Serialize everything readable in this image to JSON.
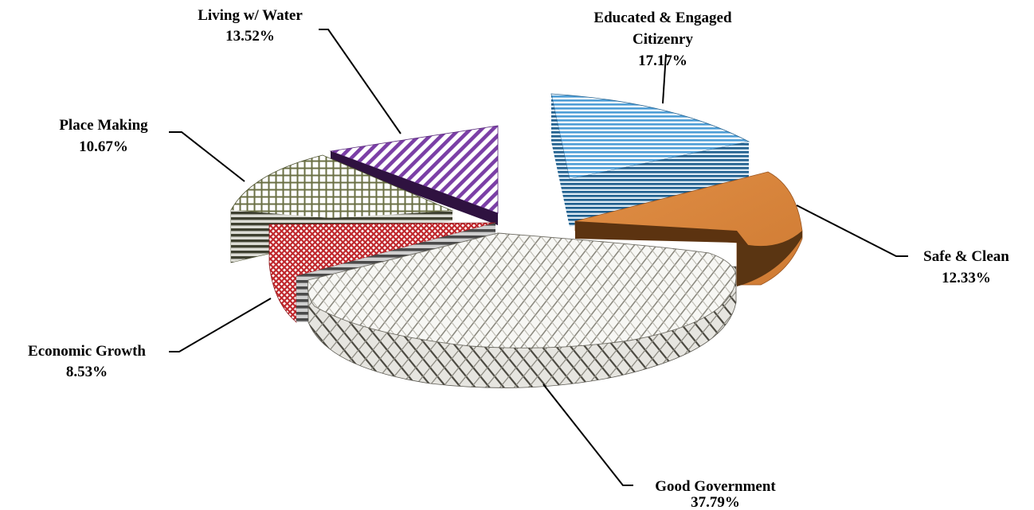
{
  "chart_data": {
    "type": "pie",
    "title": "",
    "legend": "none",
    "slices": [
      {
        "name": "Educated & Engaged Citizenry",
        "label_lines": [
          "Educated & Engaged",
          "Citizenry"
        ],
        "value": 17.17,
        "value_label": "17.17%",
        "color": "#4e9ed6",
        "pattern": "horizontal-stripes"
      },
      {
        "name": "Safe & Clean",
        "label_lines": [
          "Safe & Clean"
        ],
        "value": 12.33,
        "value_label": "12.33%",
        "color": "#d8843c",
        "pattern": "solid"
      },
      {
        "name": "Good Government",
        "label_lines": [
          "Good Government"
        ],
        "value": 37.79,
        "value_label": "37.79%",
        "color": "#6e6a5c",
        "pattern": "weave"
      },
      {
        "name": "Economic Growth",
        "label_lines": [
          "Economic Growth"
        ],
        "value": 8.53,
        "value_label": "8.53%",
        "color": "#c0282d",
        "pattern": "checker"
      },
      {
        "name": "Place Making",
        "label_lines": [
          "Place Making"
        ],
        "value": 10.67,
        "value_label": "10.67%",
        "color": "#6b7045",
        "pattern": "grid"
      },
      {
        "name": "Living w/ Water",
        "label_lines": [
          "Living w/ Water"
        ],
        "value": 13.52,
        "value_label": "13.52%",
        "color": "#7b3fa6",
        "pattern": "diagonal-stripes"
      }
    ]
  }
}
